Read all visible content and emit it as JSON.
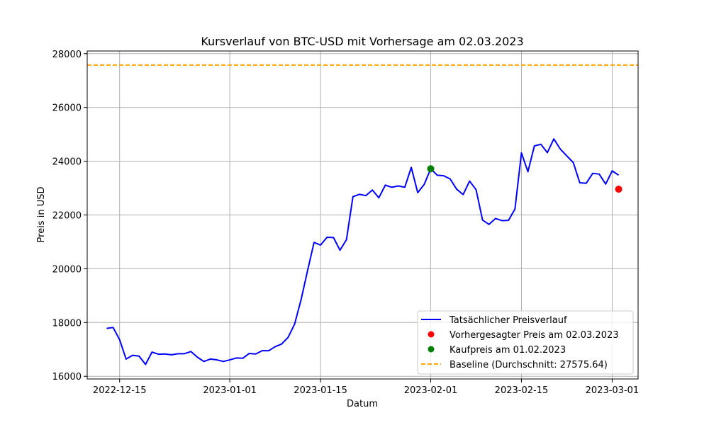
{
  "chart_data": {
    "type": "line",
    "title": "Kursverlauf von BTC-USD mit Vorhersage am 02.03.2023",
    "xlabel": "Datum",
    "ylabel": "Preis in USD",
    "ylim": [
      15900,
      28100
    ],
    "xlim": [
      "2022-12-10",
      "2023-03-05"
    ],
    "x_ticks": [
      "2022-12-15",
      "2023-01-01",
      "2023-01-15",
      "2023-02-01",
      "2023-02-15",
      "2023-03-01"
    ],
    "y_ticks": [
      16000,
      18000,
      20000,
      22000,
      24000,
      26000,
      28000
    ],
    "grid": true,
    "legend_position": "lower-right",
    "series": [
      {
        "name": "Tatsächlicher Preisverlauf",
        "kind": "line",
        "color": "#0000ff",
        "x": [
          "2022-12-13",
          "2022-12-14",
          "2022-12-15",
          "2022-12-16",
          "2022-12-17",
          "2022-12-18",
          "2022-12-19",
          "2022-12-20",
          "2022-12-21",
          "2022-12-22",
          "2022-12-23",
          "2022-12-24",
          "2022-12-25",
          "2022-12-26",
          "2022-12-27",
          "2022-12-28",
          "2022-12-29",
          "2022-12-30",
          "2022-12-31",
          "2023-01-01",
          "2023-01-02",
          "2023-01-03",
          "2023-01-04",
          "2023-01-05",
          "2023-01-06",
          "2023-01-07",
          "2023-01-08",
          "2023-01-09",
          "2023-01-10",
          "2023-01-11",
          "2023-01-12",
          "2023-01-13",
          "2023-01-14",
          "2023-01-15",
          "2023-01-16",
          "2023-01-17",
          "2023-01-18",
          "2023-01-19",
          "2023-01-20",
          "2023-01-21",
          "2023-01-22",
          "2023-01-23",
          "2023-01-24",
          "2023-01-25",
          "2023-01-26",
          "2023-01-27",
          "2023-01-28",
          "2023-01-29",
          "2023-01-30",
          "2023-01-31",
          "2023-02-01",
          "2023-02-02",
          "2023-02-03",
          "2023-02-04",
          "2023-02-05",
          "2023-02-06",
          "2023-02-07",
          "2023-02-08",
          "2023-02-09",
          "2023-02-10",
          "2023-02-11",
          "2023-02-12",
          "2023-02-13",
          "2023-02-14",
          "2023-02-15",
          "2023-02-16",
          "2023-02-17",
          "2023-02-18",
          "2023-02-19",
          "2023-02-20",
          "2023-02-21",
          "2023-02-22",
          "2023-02-23",
          "2023-02-24",
          "2023-02-25",
          "2023-02-26",
          "2023-02-27",
          "2023-02-28",
          "2023-03-01",
          "2023-03-02"
        ],
        "values": [
          17780,
          17815,
          17360,
          16640,
          16780,
          16750,
          16440,
          16900,
          16820,
          16830,
          16800,
          16840,
          16840,
          16920,
          16710,
          16550,
          16640,
          16610,
          16550,
          16610,
          16680,
          16670,
          16850,
          16830,
          16950,
          16950,
          17100,
          17200,
          17450,
          17940,
          18850,
          19930,
          20980,
          20880,
          21170,
          21160,
          20690,
          21080,
          22680,
          22770,
          22720,
          22930,
          22640,
          23110,
          23030,
          23080,
          23030,
          23770,
          22830,
          23140,
          23720,
          23480,
          23460,
          23340,
          22960,
          22760,
          23260,
          22940,
          21810,
          21650,
          21870,
          21790,
          21800,
          22220,
          24310,
          23610,
          24570,
          24630,
          24320,
          24830,
          24450,
          24200,
          23950,
          23200,
          23180,
          23550,
          23520,
          23150,
          23640,
          23480
        ]
      },
      {
        "name": "Vorhergesagter Preis am 02.03.2023",
        "kind": "point",
        "color": "#ff0000",
        "x": [
          "2023-03-02"
        ],
        "values": [
          22960
        ]
      },
      {
        "name": "Kaufpreis am 01.02.2023",
        "kind": "point",
        "color": "#008000",
        "x": [
          "2023-02-01"
        ],
        "values": [
          23720
        ]
      },
      {
        "name": "Baseline (Durchschnitt: 27575.64)",
        "kind": "hline",
        "color": "#ffa500",
        "values": [
          27575.64
        ]
      }
    ]
  }
}
